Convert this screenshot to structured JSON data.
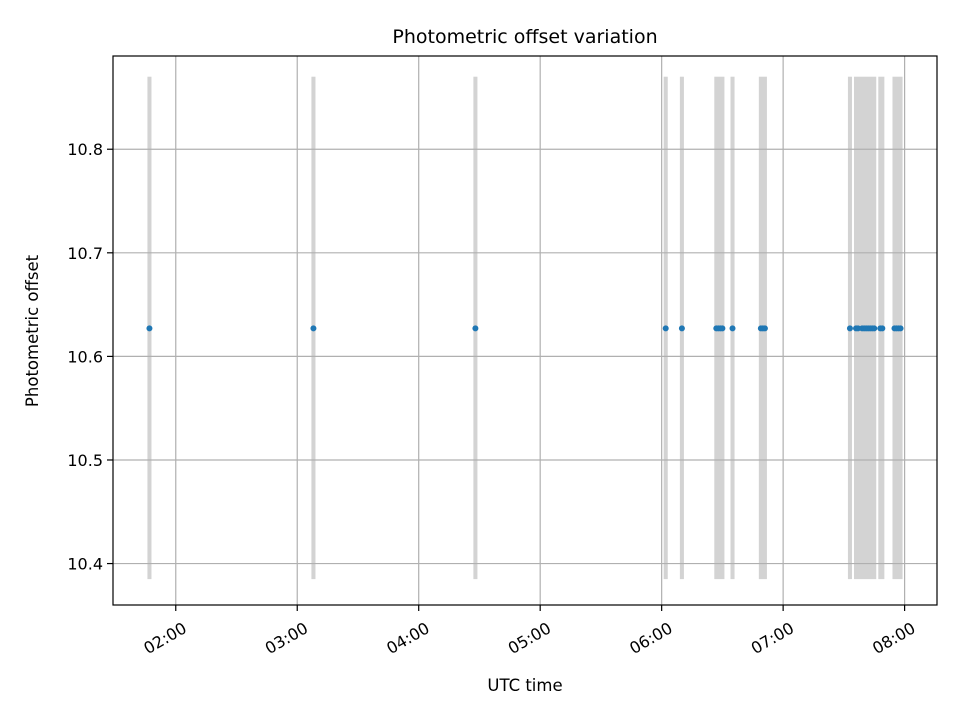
{
  "chart_data": {
    "type": "scatter",
    "title": "Photometric offset variation",
    "xlabel": "UTC time",
    "ylabel": "Photometric offset",
    "xlim": [
      "01:29",
      "08:16"
    ],
    "ylim": [
      10.36,
      10.89
    ],
    "x_ticks": [
      "02:00",
      "03:00",
      "04:00",
      "05:00",
      "06:00",
      "07:00",
      "08:00"
    ],
    "y_ticks": [
      "10.4",
      "10.5",
      "10.6",
      "10.7",
      "10.8"
    ],
    "grid": true,
    "marker_color": "#1f77b4",
    "band_color": "#d3d3d3",
    "band_range": [
      10.385,
      10.87
    ],
    "series": [
      {
        "x": [
          "01:47",
          "03:08",
          "04:28",
          "06:02",
          "06:10",
          "06:27",
          "06:28",
          "06:29",
          "06:30",
          "06:35",
          "06:49",
          "06:50",
          "06:51",
          "07:33",
          "07:36",
          "07:37",
          "07:39",
          "07:40",
          "07:41",
          "07:42",
          "07:43",
          "07:44",
          "07:45",
          "07:48",
          "07:49",
          "07:55",
          "07:56",
          "07:57",
          "07:58"
        ],
        "y": [
          10.627,
          10.627,
          10.627,
          10.627,
          10.627,
          10.627,
          10.627,
          10.627,
          10.627,
          10.627,
          10.627,
          10.627,
          10.627,
          10.627,
          10.627,
          10.627,
          10.627,
          10.627,
          10.627,
          10.627,
          10.627,
          10.627,
          10.627,
          10.627,
          10.627,
          10.627,
          10.627,
          10.627,
          10.627
        ]
      }
    ],
    "bands": [
      [
        "01:46",
        "01:48"
      ],
      [
        "03:07",
        "03:09"
      ],
      [
        "04:27",
        "04:29"
      ],
      [
        "06:01",
        "06:03"
      ],
      [
        "06:09",
        "06:11"
      ],
      [
        "06:26",
        "06:31"
      ],
      [
        "06:34",
        "06:36"
      ],
      [
        "06:48",
        "06:52"
      ],
      [
        "07:32",
        "07:34"
      ],
      [
        "07:35",
        "07:46"
      ],
      [
        "07:47",
        "07:50"
      ],
      [
        "07:54",
        "07:59"
      ]
    ]
  }
}
